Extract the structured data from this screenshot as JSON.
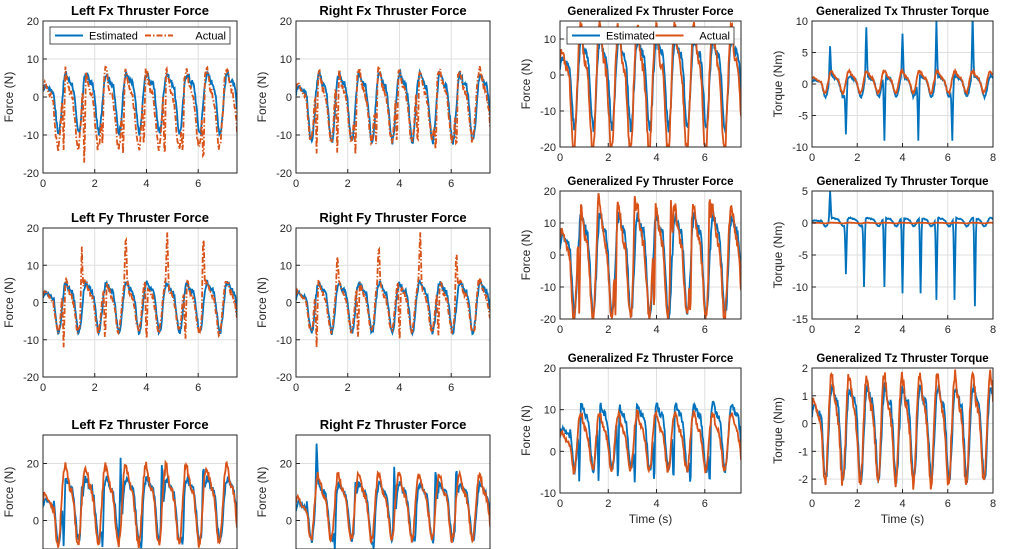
{
  "colors": {
    "estimated": "#0072BD",
    "actual": "#D95319",
    "grid": "#DFDFDF",
    "axis": "#262626"
  },
  "chart_data": [
    {
      "type": "line",
      "title": "Left Fx Thruster Force",
      "xlabel": "",
      "ylabel": "Force (N)",
      "xlim": [
        0,
        7.5
      ],
      "ylim": [
        -20,
        20
      ],
      "yticks": [
        -20,
        -10,
        0,
        10,
        20
      ],
      "xticks": [
        0,
        2,
        4,
        6
      ],
      "legend": {
        "placement": "top",
        "entries": [
          "Estimated",
          "Actual"
        ]
      },
      "series": [
        {
          "name": "Estimated",
          "style": "solid",
          "amp": 7,
          "offset": 0,
          "spikes": []
        },
        {
          "name": "Actual",
          "style": "dashdot",
          "amp": 9,
          "offset": -2,
          "spikes": [
            [
              0.8,
              -15
            ],
            [
              1.6,
              -20
            ],
            [
              2.3,
              -13
            ],
            [
              3.1,
              -17
            ],
            [
              3.9,
              -15
            ],
            [
              4.7,
              -19
            ],
            [
              5.4,
              -16
            ],
            [
              6.2,
              -19
            ]
          ]
        }
      ]
    },
    {
      "type": "line",
      "title": "Right Fx Thruster Force",
      "xlabel": "",
      "ylabel": "Force (N)",
      "xlim": [
        0,
        7.5
      ],
      "ylim": [
        -20,
        20
      ],
      "yticks": [
        -20,
        -10,
        0,
        10,
        20
      ],
      "xticks": [
        0,
        2,
        4,
        6
      ],
      "series": [
        {
          "name": "Estimated",
          "style": "solid",
          "amp": 8,
          "offset": -1,
          "spikes": []
        },
        {
          "name": "Actual",
          "style": "dashdot",
          "amp": 8,
          "offset": -1,
          "spikes": [
            [
              0.8,
              -16
            ],
            [
              1.6,
              -17
            ],
            [
              2.3,
              -16
            ],
            [
              3.1,
              -14
            ],
            [
              3.9,
              -14
            ],
            [
              4.7,
              -15
            ],
            [
              5.4,
              -16
            ],
            [
              6.2,
              -15
            ]
          ]
        }
      ]
    },
    {
      "type": "line",
      "title": "Generalized Fx Thruster Force",
      "xlabel": "",
      "ylabel": "Force (N)",
      "xlim": [
        0,
        7.5
      ],
      "ylim": [
        -20,
        15
      ],
      "yticks": [
        -20,
        -10,
        0,
        10
      ],
      "xticks": [
        0,
        2,
        4,
        6
      ],
      "legend": {
        "placement": "top",
        "entries": [
          "Estimated",
          "Actual"
        ]
      },
      "series": [
        {
          "name": "Estimated",
          "style": "solid",
          "amp": 11,
          "offset": 0,
          "spikes": []
        },
        {
          "name": "Actual",
          "style": "solid",
          "amp": 15,
          "offset": -2,
          "spikes": []
        }
      ]
    },
    {
      "type": "line",
      "title": "Generalized Tx Thruster Torque",
      "xlabel": "",
      "ylabel": "Torque (Nm)",
      "xlim": [
        0,
        8
      ],
      "ylim": [
        -10,
        10
      ],
      "yticks": [
        -10,
        -5,
        0,
        5,
        10
      ],
      "xticks": [
        0,
        2,
        4,
        6,
        8
      ],
      "series": [
        {
          "name": "Estimated",
          "style": "solid",
          "amp": 1.5,
          "offset": 0,
          "spikes": [
            [
              0.8,
              6
            ],
            [
              1.5,
              -8
            ],
            [
              2.4,
              9
            ],
            [
              3.2,
              -9
            ],
            [
              4,
              8
            ],
            [
              4.7,
              -9
            ],
            [
              5.5,
              10
            ],
            [
              6.2,
              -9
            ],
            [
              7.1,
              11
            ]
          ]
        },
        {
          "name": "Actual",
          "style": "solid",
          "amp": 1.5,
          "offset": 0.5,
          "spikes": []
        }
      ]
    },
    {
      "type": "line",
      "title": "Left Fy Thruster Force",
      "xlabel": "",
      "ylabel": "Force (N)",
      "xlim": [
        0,
        7.5
      ],
      "ylim": [
        -20,
        20
      ],
      "yticks": [
        -20,
        -10,
        0,
        10,
        20
      ],
      "xticks": [
        0,
        2,
        4,
        6
      ],
      "series": [
        {
          "name": "Estimated",
          "style": "solid",
          "amp": 6,
          "offset": 0,
          "spikes": []
        },
        {
          "name": "Actual",
          "style": "dashdot",
          "amp": 6,
          "offset": 0,
          "spikes": [
            [
              0.8,
              -13
            ],
            [
              1.5,
              15
            ],
            [
              2.4,
              -12
            ],
            [
              3.2,
              19
            ],
            [
              4,
              -12
            ],
            [
              4.8,
              20
            ],
            [
              5.5,
              -12
            ],
            [
              6.2,
              20
            ],
            [
              6.8,
              -9
            ]
          ]
        }
      ]
    },
    {
      "type": "line",
      "title": "Right Fy Thruster Force",
      "xlabel": "",
      "ylabel": "Force (N)",
      "xlim": [
        0,
        7.5
      ],
      "ylim": [
        -20,
        20
      ],
      "yticks": [
        -20,
        -10,
        0,
        10,
        20
      ],
      "xticks": [
        0,
        2,
        4,
        6
      ],
      "series": [
        {
          "name": "Estimated",
          "style": "solid",
          "amp": 6,
          "offset": 0,
          "spikes": []
        },
        {
          "name": "Actual",
          "style": "dashdot",
          "amp": 6,
          "offset": 0,
          "spikes": [
            [
              0.8,
              -13
            ],
            [
              1.6,
              13
            ],
            [
              2.4,
              -12
            ],
            [
              3.2,
              16
            ],
            [
              4,
              -12
            ],
            [
              4.8,
              20
            ],
            [
              5.5,
              -11
            ],
            [
              6.2,
              15
            ],
            [
              6.9,
              -8
            ]
          ]
        }
      ]
    },
    {
      "type": "line",
      "title": "Generalized Fy Thruster Force",
      "xlabel": "",
      "ylabel": "Force (N)",
      "xlim": [
        0,
        7.5
      ],
      "ylim": [
        -20,
        20
      ],
      "yticks": [
        -20,
        -10,
        0,
        10,
        20
      ],
      "xticks": [
        0,
        2,
        4,
        6
      ],
      "series": [
        {
          "name": "Estimated",
          "style": "solid",
          "amp": 14,
          "offset": 0,
          "spikes": []
        },
        {
          "name": "Actual",
          "style": "solid",
          "amp": 15,
          "offset": 0,
          "spikes": [
            [
              0.8,
              -20
            ],
            [
              1.6,
              20
            ],
            [
              2.3,
              -20
            ],
            [
              3.1,
              20
            ],
            [
              3.9,
              -20
            ],
            [
              4.6,
              20
            ],
            [
              5.4,
              -20
            ],
            [
              6.2,
              20
            ]
          ]
        }
      ]
    },
    {
      "type": "line",
      "title": "Generalized Ty Thruster Torque",
      "xlabel": "",
      "ylabel": "Torque (Nm)",
      "xlim": [
        0,
        8
      ],
      "ylim": [
        -15,
        5
      ],
      "yticks": [
        -15,
        -10,
        -5,
        0,
        5
      ],
      "xticks": [
        0,
        2,
        4,
        6,
        8
      ],
      "series": [
        {
          "name": "Estimated",
          "style": "solid",
          "amp": 0.6,
          "offset": 0.3,
          "spikes": [
            [
              0.8,
              5
            ],
            [
              1.5,
              -8
            ],
            [
              2.3,
              -10
            ],
            [
              3.2,
              -10
            ],
            [
              4,
              -11
            ],
            [
              4.8,
              -11
            ],
            [
              5.5,
              -12
            ],
            [
              6.3,
              -12
            ],
            [
              7.2,
              -13
            ]
          ]
        },
        {
          "name": "Actual",
          "style": "solid",
          "amp": 0.05,
          "offset": 0,
          "spikes": []
        }
      ]
    },
    {
      "type": "line",
      "title": "Left Fz Thruster Force",
      "xlabel": "",
      "ylabel": "Force (N)",
      "xlim": [
        0,
        7.5
      ],
      "ylim": [
        -10,
        30
      ],
      "yticks": [
        0,
        20
      ],
      "xticks": [],
      "series": [
        {
          "name": "Estimated",
          "style": "solid",
          "amp": 10,
          "offset": 6,
          "spikes": [
            [
              0.8,
              -10
            ],
            [
              1.5,
              12
            ],
            [
              2.3,
              -10
            ],
            [
              3,
              22
            ],
            [
              3.8,
              -10
            ],
            [
              4.6,
              22
            ],
            [
              5.4,
              -10
            ],
            [
              6.2,
              21
            ]
          ]
        },
        {
          "name": "Actual",
          "style": "solid",
          "amp": 12,
          "offset": 7,
          "spikes": []
        }
      ]
    },
    {
      "type": "line",
      "title": "Right Fz Thruster Force",
      "xlabel": "",
      "ylabel": "Force (N)",
      "xlim": [
        0,
        7.5
      ],
      "ylim": [
        -10,
        30
      ],
      "yticks": [
        0,
        20
      ],
      "xticks": [],
      "series": [
        {
          "name": "Estimated",
          "style": "solid",
          "amp": 9,
          "offset": 5,
          "spikes": [
            [
              0.8,
              28
            ],
            [
              1.5,
              -10
            ],
            [
              2.3,
              14
            ],
            [
              3,
              -10
            ],
            [
              3.8,
              20
            ],
            [
              4.6,
              -8
            ],
            [
              5.4,
              20
            ],
            [
              6.2,
              20
            ]
          ]
        },
        {
          "name": "Actual",
          "style": "solid",
          "amp": 10,
          "offset": 6,
          "spikes": []
        }
      ]
    },
    {
      "type": "line",
      "title": "Generalized Fz Thruster Force",
      "xlabel": "Time (s)",
      "ylabel": "Force (N)",
      "xlim": [
        0,
        7.5
      ],
      "ylim": [
        -10,
        20
      ],
      "yticks": [
        -10,
        0,
        10,
        20
      ],
      "xticks": [
        0,
        2,
        4,
        6
      ],
      "series": [
        {
          "name": "Estimated",
          "style": "solid",
          "amp": 7,
          "offset": 5,
          "spikes": [
            [
              0.8,
              -8
            ],
            [
              1.6,
              -9
            ],
            [
              2.4,
              -9
            ],
            [
              3.1,
              -9
            ],
            [
              3.9,
              -9
            ],
            [
              4.7,
              -9
            ],
            [
              5.4,
              -9
            ],
            [
              6.2,
              -9
            ]
          ]
        },
        {
          "name": "Actual",
          "style": "solid",
          "amp": 6,
          "offset": 3,
          "spikes": []
        }
      ]
    },
    {
      "type": "line",
      "title": "Generalized Tz Thruster Torque",
      "xlabel": "Time (s)",
      "ylabel": "Torque (Nm)",
      "xlim": [
        0,
        8
      ],
      "ylim": [
        -2.5,
        2
      ],
      "yticks": [
        -2,
        -1,
        0,
        1,
        2
      ],
      "xticks": [
        0,
        2,
        4,
        6,
        8
      ],
      "series": [
        {
          "name": "Estimated",
          "style": "solid",
          "amp": 1.5,
          "offset": 0,
          "spikes": []
        },
        {
          "name": "Actual",
          "style": "solid",
          "amp": 1.7,
          "offset": 0,
          "spikes": []
        }
      ]
    }
  ]
}
